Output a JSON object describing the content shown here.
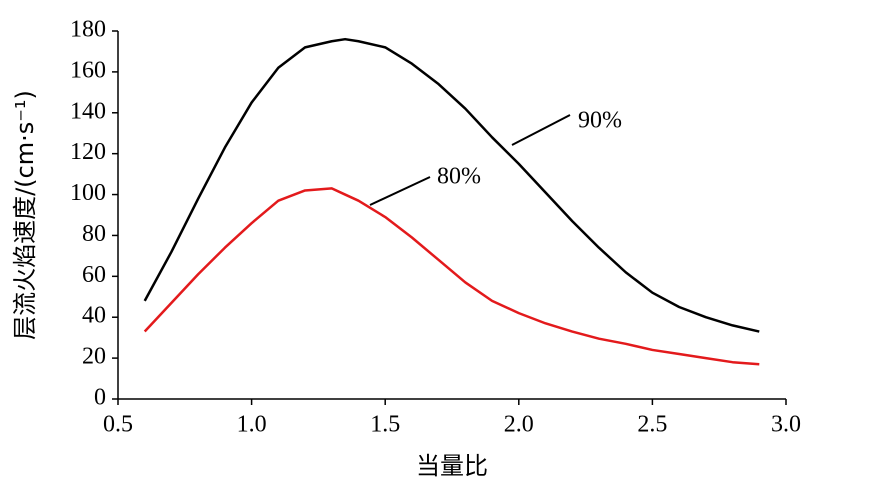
{
  "chart_data": {
    "type": "line",
    "xlabel": "当量比",
    "ylabel": "层流火焰速度/(cm·s⁻¹)",
    "x": [
      0.6,
      0.7,
      0.8,
      0.9,
      1.0,
      1.1,
      1.2,
      1.3,
      1.35,
      1.4,
      1.5,
      1.6,
      1.7,
      1.8,
      1.9,
      2.0,
      2.1,
      2.2,
      2.3,
      2.4,
      2.5,
      2.6,
      2.7,
      2.8,
      2.9
    ],
    "series": [
      {
        "name": "90%",
        "color": "#000000",
        "values": [
          48,
          72,
          98,
          123,
          145,
          162,
          172,
          175,
          176,
          175,
          172,
          164,
          154,
          142,
          128,
          115,
          101,
          87,
          74,
          62,
          52,
          45,
          40,
          36,
          33
        ]
      },
      {
        "name": "80%",
        "color": "#e31a1c",
        "values": [
          33,
          47,
          61,
          74,
          86,
          97,
          102,
          103,
          100,
          97,
          89,
          79,
          68,
          57,
          48,
          42,
          37,
          33,
          29.5,
          27,
          24,
          22,
          20,
          18,
          17
        ]
      }
    ],
    "xlim": [
      0.5,
      3.0
    ],
    "ylim": [
      0,
      180
    ],
    "xticks": [
      0.5,
      {
        "value": 1,
        "label": "1.0"
      },
      1.5,
      {
        "value": 2,
        "label": "2.0"
      },
      2.5,
      {
        "value": 3,
        "label": "3.0"
      }
    ],
    "yticks": [
      0,
      20,
      40,
      60,
      80,
      100,
      120,
      140,
      160,
      180
    ],
    "grid": false
  }
}
